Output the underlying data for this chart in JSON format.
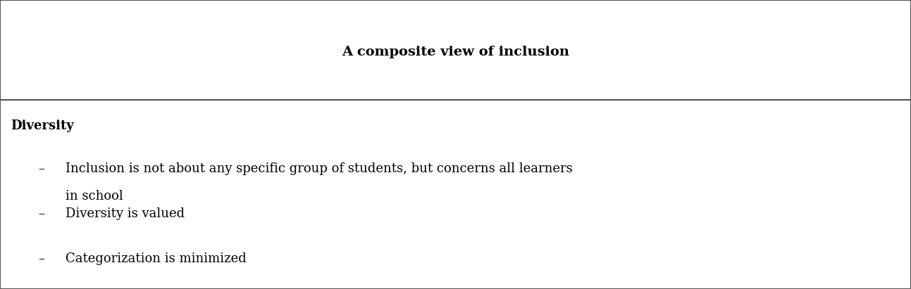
{
  "title": "A composite view of inclusion",
  "title_fontsize": 14,
  "title_fontweight": "bold",
  "section_header": "Diversity",
  "section_header_fontsize": 13,
  "section_header_fontweight": "bold",
  "bullet_char": "–",
  "bullets": [
    "Inclusion is not about any specific group of students, but concerns all learners\nin school",
    "Diversity is valued",
    "Categorization is minimized"
  ],
  "bullet_fontsize": 13,
  "background_color": "#ffffff",
  "border_color": "#555555",
  "divider_color": "#555555",
  "text_color": "#000000",
  "fig_width": 12.93,
  "fig_height": 4.11
}
